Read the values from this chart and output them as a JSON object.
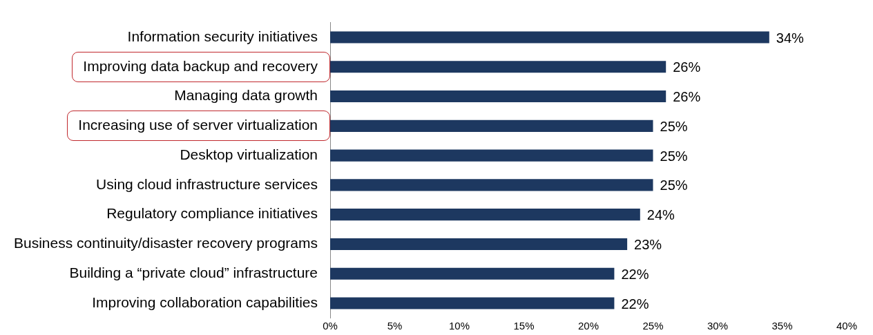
{
  "chart_data": {
    "type": "bar",
    "orientation": "horizontal",
    "categories": [
      "Information security initiatives",
      "Improving data backup and recovery",
      "Managing data growth",
      "Increasing use of server virtualization",
      "Desktop virtualization",
      "Using cloud infrastructure services",
      "Regulatory compliance initiatives",
      "Business continuity/disaster recovery programs",
      "Building a “private cloud” infrastructure",
      "Improving collaboration capabilities"
    ],
    "values": [
      34,
      26,
      26,
      25,
      25,
      25,
      24,
      23,
      22,
      22
    ],
    "value_labels": [
      "34%",
      "26%",
      "26%",
      "25%",
      "25%",
      "25%",
      "24%",
      "23%",
      "22%",
      "22%"
    ],
    "color": "#1d3860",
    "xlim": [
      0,
      40
    ],
    "xticks": [
      {
        "value": 0,
        "label": "0%"
      },
      {
        "value": 5,
        "label": "5%"
      },
      {
        "value": 10,
        "label": "10%"
      },
      {
        "value": 15,
        "label": "15%"
      },
      {
        "value": 20,
        "label": "20%"
      },
      {
        "value": 25,
        "label": "25%"
      },
      {
        "value": 30,
        "label": "30%"
      },
      {
        "value": 35,
        "label": "35%"
      },
      {
        "value": 40,
        "label": "40%"
      }
    ],
    "grid": false,
    "legend": false
  }
}
